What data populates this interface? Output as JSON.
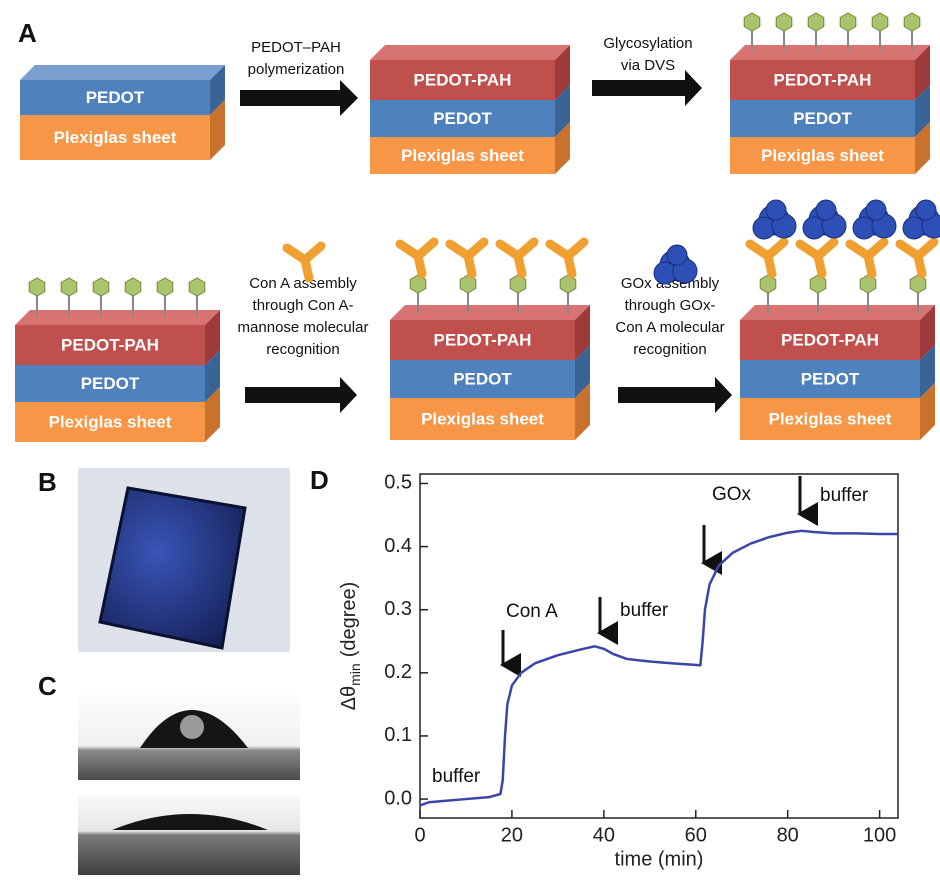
{
  "figure": {
    "panel_labels": [
      "A",
      "B",
      "C",
      "D"
    ],
    "panel_a": {
      "steps": [
        {
          "label_lines": [
            "PEDOT–PAH",
            "polymerization"
          ]
        },
        {
          "label_lines": [
            "Glycosylation",
            "via DVS"
          ]
        },
        {
          "label_lines": [
            "Con A assembly",
            "through Con A-",
            "mannose molecular",
            "recognition"
          ]
        },
        {
          "label_lines": [
            "GOx assembly",
            "through  GOx-",
            "Con A molecular",
            "recognition"
          ]
        }
      ],
      "stacks": [
        {
          "layers": [
            "PEDOT",
            "Plexiglas sheet"
          ]
        },
        {
          "layers": [
            "PEDOT-PAH",
            "PEDOT",
            "Plexiglas sheet"
          ]
        },
        {
          "layers": [
            "PEDOT-PAH",
            "PEDOT",
            "Plexiglas sheet"
          ]
        },
        {
          "layers": [
            "PEDOT-PAH",
            "PEDOT",
            "Plexiglas sheet"
          ]
        },
        {
          "layers": [
            "PEDOT-PAH",
            "PEDOT",
            "Plexiglas sheet"
          ]
        },
        {
          "layers": [
            "PEDOT-PAH",
            "PEDOT",
            "Plexiglas sheet"
          ]
        }
      ]
    }
  },
  "chart_data": {
    "type": "line",
    "x_label": "time (min)",
    "y_label": {
      "main": "Δθ",
      "subscript": "min",
      "unit": "(degree)"
    },
    "annotations": [
      "buffer",
      "Con A",
      "buffer",
      "GOx",
      "buffer"
    ],
    "xlim": [
      0,
      104
    ],
    "ylim": [
      -0.03,
      0.515
    ],
    "xticks": [
      0,
      20,
      40,
      60,
      80,
      100
    ],
    "yticks": [
      {
        "value": 0,
        "label": "0.0"
      },
      0.1,
      0.2,
      0.3,
      0.4,
      0.5
    ],
    "series": [
      {
        "color": "#3b44a8",
        "x": [
          0,
          2,
          5,
          10,
          15,
          17.5,
          18,
          18.5,
          19,
          20,
          22,
          25,
          30,
          35,
          38,
          40,
          42,
          45,
          50,
          55,
          61,
          61.5,
          62,
          63,
          65,
          68,
          72,
          76,
          80,
          83,
          86,
          90,
          95,
          100,
          104
        ],
        "values": [
          -0.01,
          -0.005,
          -0.003,
          0,
          0.003,
          0.008,
          0.03,
          0.1,
          0.15,
          0.18,
          0.2,
          0.215,
          0.228,
          0.237,
          0.242,
          0.238,
          0.23,
          0.222,
          0.218,
          0.215,
          0.212,
          0.25,
          0.3,
          0.34,
          0.37,
          0.39,
          0.405,
          0.415,
          0.422,
          0.425,
          0.423,
          0.421,
          0.421,
          0.42,
          0.42
        ]
      }
    ]
  }
}
